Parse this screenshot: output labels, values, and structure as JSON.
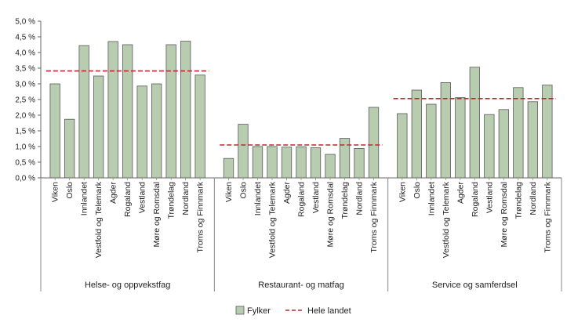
{
  "chart_data": {
    "type": "bar",
    "title": "",
    "xlabel": "",
    "ylabel": "",
    "ylim": [
      0,
      5
    ],
    "yticks": [
      "0,0 %",
      "0,5 %",
      "1,0 %",
      "1,5 %",
      "2,0 %",
      "2,5 %",
      "3,0 %",
      "3,5 %",
      "4,0 %",
      "4,5 %",
      "5,0 %"
    ],
    "bar_color": "#b8ccb0",
    "line_color": "#c0272d",
    "categories": [
      "Viken",
      "Oslo",
      "Innlandet",
      "Vestfold og Telemark",
      "Agder",
      "Rogaland",
      "Vestland",
      "Møre og Romsdal",
      "Trøndelag",
      "Nordland",
      "Troms og Finnmark"
    ],
    "groups": [
      {
        "name": "Helse- og oppvekstfag",
        "values": [
          3.0,
          1.87,
          4.22,
          3.25,
          4.35,
          4.25,
          2.93,
          3.0,
          4.25,
          4.36,
          3.28
        ],
        "national": 3.41
      },
      {
        "name": "Restaurant- og matfag",
        "values": [
          0.62,
          1.71,
          1.0,
          1.0,
          0.98,
          0.99,
          0.96,
          0.75,
          1.26,
          0.94,
          2.25
        ],
        "national": 1.05
      },
      {
        "name": "Service og samferdsel",
        "values": [
          2.05,
          2.8,
          2.35,
          3.04,
          2.56,
          3.53,
          2.02,
          2.18,
          2.88,
          2.43,
          2.96
        ],
        "national": 2.53
      }
    ],
    "legend": {
      "series_label": "Fylker",
      "line_label": "Hele landet"
    }
  }
}
